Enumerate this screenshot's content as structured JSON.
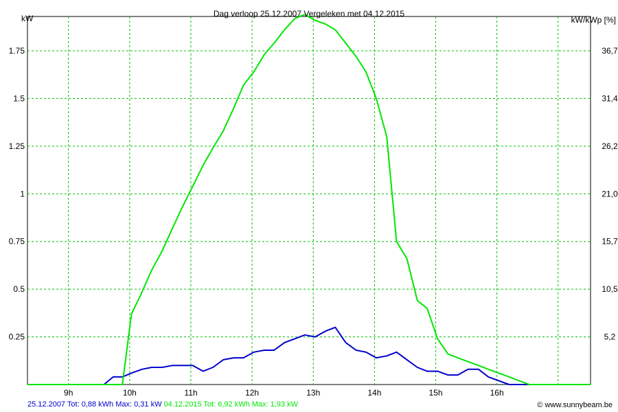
{
  "chart_data": {
    "type": "line",
    "title": "Dag  verloop 25.12.2007   Vergeleken met 04.12.2015",
    "ylabel_left": "kW",
    "ylabel_right": "kW/kWp [%]",
    "ylim": [
      0,
      1.93
    ],
    "y_ticks": [
      0.25,
      0.5,
      0.75,
      1,
      1.25,
      1.5,
      1.75
    ],
    "y_tick_labels": [
      "0.25",
      "0.5",
      "0.75",
      "1",
      "1.25",
      "1.5",
      "1.75"
    ],
    "y2_ticks": [
      0.25,
      0.5,
      0.75,
      1,
      1.25,
      1.5,
      1.75
    ],
    "y2_tick_labels": [
      "5,2",
      "10,5",
      "15,7",
      "21,0",
      "26,2",
      "31,4",
      "36,7"
    ],
    "xlim": [
      8.3,
      17.5
    ],
    "x_grid": [
      8.97,
      9.97,
      10.97,
      11.97,
      12.97,
      13.97,
      14.97,
      15.97,
      16.97
    ],
    "x_ticks": [
      8.97,
      9.97,
      10.97,
      11.97,
      12.97,
      13.97,
      14.97,
      15.97
    ],
    "x_tick_labels": [
      "9h",
      "10h",
      "11h",
      "12h",
      "13h",
      "14h",
      "15h",
      "16h"
    ],
    "grid": true,
    "series": [
      {
        "name": "25.12.2007",
        "color": "#0000cc",
        "x": [
          8.3,
          9.55,
          9.7,
          9.85,
          10.0,
          10.17,
          10.33,
          10.5,
          10.67,
          10.83,
          11.0,
          11.17,
          11.33,
          11.5,
          11.67,
          11.83,
          12.0,
          12.17,
          12.33,
          12.5,
          12.67,
          12.83,
          13.0,
          13.17,
          13.33,
          13.5,
          13.67,
          13.83,
          14.0,
          14.17,
          14.33,
          14.5,
          14.67,
          14.83,
          15.0,
          15.17,
          15.33,
          15.5,
          15.67,
          15.83,
          16.0,
          16.17,
          16.33,
          16.6,
          17.5
        ],
        "values": [
          0,
          0,
          0.04,
          0.04,
          0.06,
          0.08,
          0.09,
          0.09,
          0.1,
          0.1,
          0.1,
          0.07,
          0.09,
          0.13,
          0.14,
          0.14,
          0.17,
          0.18,
          0.18,
          0.22,
          0.24,
          0.26,
          0.25,
          0.28,
          0.3,
          0.22,
          0.18,
          0.17,
          0.14,
          0.15,
          0.17,
          0.13,
          0.09,
          0.07,
          0.07,
          0.05,
          0.05,
          0.08,
          0.08,
          0.04,
          0.02,
          0,
          0,
          0,
          0
        ]
      },
      {
        "name": "04.12.2015",
        "color": "#00e600",
        "x": [
          8.3,
          9.85,
          10.0,
          10.15,
          10.33,
          10.5,
          10.67,
          10.83,
          11.0,
          11.17,
          11.33,
          11.5,
          11.67,
          11.83,
          12.0,
          12.17,
          12.33,
          12.5,
          12.67,
          12.83,
          13.0,
          13.17,
          13.33,
          13.5,
          13.67,
          13.83,
          14.0,
          14.17,
          14.33,
          14.5,
          14.67,
          14.83,
          15.0,
          15.17,
          15.33,
          15.5,
          15.67,
          15.83,
          16.0,
          16.17,
          16.33,
          16.5,
          17.5
        ],
        "values": [
          0,
          0,
          0.37,
          0.47,
          0.6,
          0.7,
          0.82,
          0.93,
          1.04,
          1.15,
          1.24,
          1.33,
          1.45,
          1.57,
          1.64,
          1.73,
          1.79,
          1.86,
          1.92,
          1.94,
          1.91,
          1.89,
          1.86,
          1.79,
          1.72,
          1.64,
          1.5,
          1.3,
          0.75,
          0.66,
          0.44,
          0.4,
          0.24,
          0.16,
          0.14,
          0.12,
          0.1,
          0.08,
          0.06,
          0.04,
          0.02,
          0,
          0
        ]
      }
    ]
  },
  "footer": {
    "series1_text": "25.12.2007 Tot: 0,88 kWh Max: 0,31 kW",
    "series2_text": " 04.12.2015 Tot: 6,92 kWh Max: 1,93 kW",
    "credit": "© www.sunnybeam.be",
    "series1_color": "#0000cc",
    "series2_color": "#00e600"
  }
}
